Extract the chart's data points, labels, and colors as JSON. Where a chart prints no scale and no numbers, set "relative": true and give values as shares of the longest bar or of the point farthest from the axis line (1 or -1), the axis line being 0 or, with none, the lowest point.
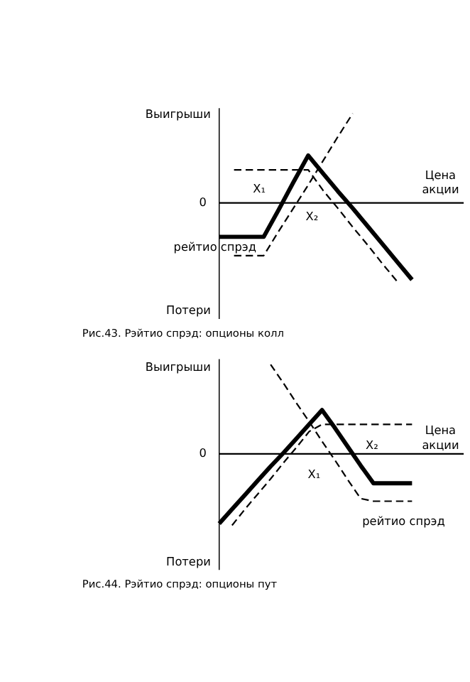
{
  "chart_data": [
    {
      "type": "line",
      "relative": true,
      "title": "Рис.43. Рэйтио спрэд: опционы колл",
      "xlabel": "Цена акции",
      "annotations": [
        "Выигрыши",
        "Потери",
        "0",
        "X₁",
        "X₂"
      ],
      "categories": [
        null,
        null,
        null,
        null,
        null,
        null,
        null,
        null,
        null,
        null,
        null,
        null,
        null,
        null
      ],
      "series": [
        {
          "name": "рейтио спрэд",
          "color": "#000000",
          "line_style": "solid",
          "values": [
            -0.38,
            -0.38,
            -0.38,
            -0.38,
            -0.08,
            0.23,
            0.53,
            0.33,
            0.13,
            -0.06,
            -0.26,
            -0.46,
            -0.66,
            -0.86
          ]
        },
        {
          "color": "#000000",
          "line_style": "dashed",
          "values": [
            null,
            -0.59,
            -0.59,
            -0.59,
            -0.32,
            -0.06,
            0.2,
            0.47,
            0.74,
            1.0,
            null,
            null,
            null,
            null
          ]
        },
        {
          "color": "#000000",
          "line_style": "dashed",
          "values": [
            null,
            0.37,
            0.37,
            0.37,
            0.37,
            0.37,
            0.37,
            0.14,
            -0.06,
            -0.27,
            -0.47,
            -0.68,
            -0.88,
            null
          ]
        }
      ]
    },
    {
      "type": "line",
      "relative": true,
      "title": "Рис.44. Рэйтио спрэд: опционы пут",
      "xlabel": "Цена акции",
      "annotations": [
        "Выигрыши",
        "Потери",
        "0",
        "X₁",
        "X₂"
      ],
      "categories": [
        null,
        null,
        null,
        null,
        null,
        null,
        null,
        null,
        null,
        null,
        null,
        null,
        null,
        null,
        null,
        null
      ],
      "series": [
        {
          "name": "рейтио спрэд",
          "color": "#000000",
          "line_style": "solid",
          "values": [
            -0.78,
            -0.62,
            -0.46,
            -0.3,
            -0.14,
            0.01,
            0.17,
            0.33,
            0.49,
            0.29,
            0.08,
            -0.13,
            -0.33,
            -0.33,
            -0.33,
            -0.33
          ]
        },
        {
          "color": "#000000",
          "line_style": "dashed",
          "values": [
            null,
            null,
            null,
            null,
            1.0,
            0.79,
            0.57,
            0.36,
            0.14,
            -0.07,
            -0.29,
            -0.5,
            -0.53,
            -0.53,
            -0.53,
            -0.53
          ]
        },
        {
          "color": "#000000",
          "line_style": "dashed",
          "values": [
            null,
            -0.8,
            -0.62,
            -0.45,
            -0.28,
            -0.1,
            0.07,
            0.25,
            0.33,
            0.33,
            0.33,
            0.33,
            0.33,
            0.33,
            0.33,
            0.33
          ]
        }
      ]
    }
  ]
}
